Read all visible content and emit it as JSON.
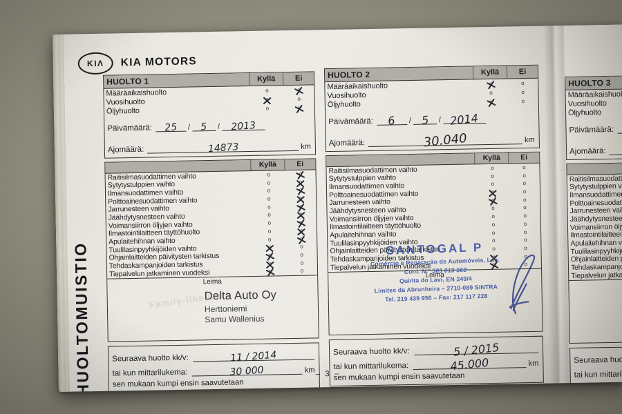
{
  "photo": {
    "floor_base": "#908d7e",
    "floor_speckle_dark": "#57533f",
    "floor_speckle_light": "#a9a593"
  },
  "ink": {
    "pen": "#262630",
    "stamp_blue": "#3a53a8"
  },
  "brand": {
    "logo": "KIΛ",
    "name": "KIA MOTORS"
  },
  "side_title": "HUOLTOMUISTIO",
  "page_number": "– 3 –",
  "printed": {
    "yes": "Kyllä",
    "no": "Ei",
    "circle": "o",
    "slash": "/",
    "date_label": "Päivämäärä:",
    "mileage_label": "Ajomäärä:",
    "km": "km",
    "stamp_label": "Leima",
    "next_label": "Seuraava huolto kk/v:",
    "odo_label": "tai kun mittarilukema:",
    "whichever": "sen mukaan kumpi ensin saavutetaan"
  },
  "top_items": [
    "Määräaikaishuolto",
    "Vuosihuolto",
    "Öljyhuolto"
  ],
  "service_items": [
    "Raitisilmasuodattimen vaihto",
    "Sytytystulppien vaihto",
    "Ilmansuodattimen vaihto",
    "Polttoainesuodattimen vaihto",
    "Jarrunesteen vaihto",
    "Jäähdytysnesteen vaihto",
    "Voimansiirron öljyjen vaihto",
    "Ilmastointilaitteen täyttöhuolto",
    "Apulaitehihnan vaihto",
    "Tuulilasinpyyhkijöiden vaihto",
    "Ohjainlaitteiden päivitysten tarkistus",
    "Tehdaskampanjoiden tarkistus",
    "Tiepalvelun jatkaminen vuodeksi"
  ],
  "huolto1": {
    "title": "HUOLTO 1",
    "top_marks": [
      "E",
      "K",
      "E"
    ],
    "item_marks": [
      "E",
      "E",
      "E",
      "E",
      "E",
      "E",
      "E",
      "E",
      "E",
      "K",
      "K",
      "K",
      "K"
    ],
    "date": {
      "d": "25",
      "m": "5",
      "y": "2013"
    },
    "mileage": "14873",
    "ghost_stamp": "Family-like Care",
    "stamp": {
      "line1": "Delta Auto Oy",
      "line2": "Herttoniemi",
      "line3": "Samu Wallenius"
    },
    "next_mv": "11 / 2014",
    "next_km": "30 000"
  },
  "huolto2": {
    "title": "HUOLTO 2",
    "top_marks": [
      "K",
      null,
      "K"
    ],
    "item_marks": [
      null,
      null,
      null,
      "K",
      "K",
      null,
      null,
      null,
      null,
      null,
      null,
      "K",
      "K"
    ],
    "date": {
      "d": "6",
      "m": "5",
      "y": "2014"
    },
    "mileage": "30.040",
    "blue_stamp": {
      "name": "SANTOGAL P",
      "l1": "Comércio e Reparação de Automóveis, Lda.",
      "l2": "Cont. N.º 503 019 569",
      "l3": "Quinta do Lavi, EN 249/4",
      "l4": "Limites da Abrunheira  –  2710-089 SINTRA",
      "l5": "Tel. 219 439 950    –    Fax: 217 117 228"
    },
    "next_mv": "5 / 2015",
    "next_km": "45.000"
  },
  "huolto3": {
    "title": "HUOLTO 3",
    "top_marks": [],
    "item_marks": [],
    "date": {
      "d": "",
      "m": "",
      "y": ""
    },
    "mileage": "",
    "next_mv": "",
    "next_km": ""
  }
}
